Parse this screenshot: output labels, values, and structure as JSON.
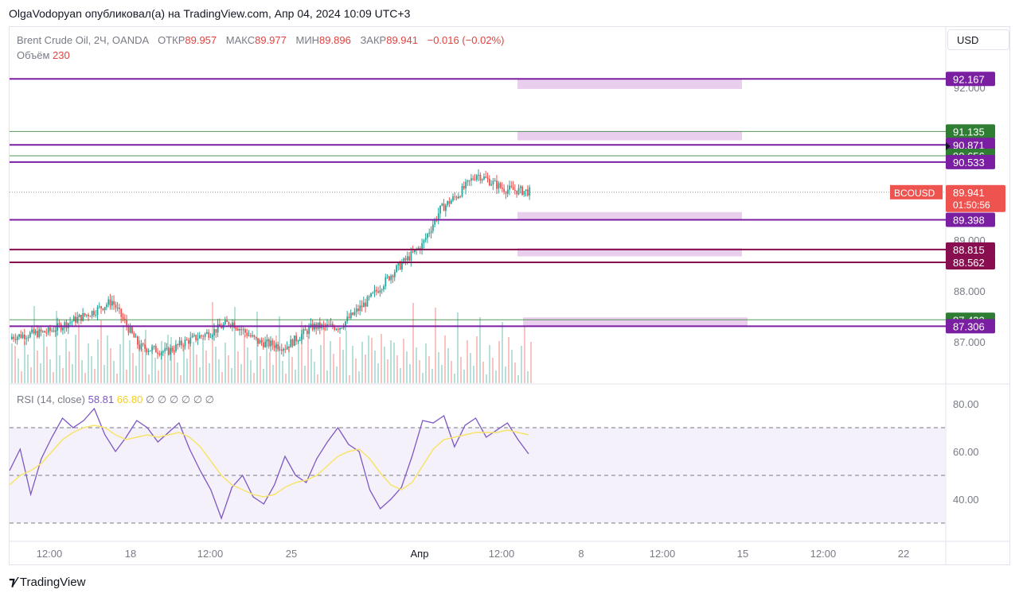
{
  "header": {
    "publisher_line": "OlgaVodopyan опубликовал(а) на TradingView.com, Апр 04, 2024 10:09 UTC+3"
  },
  "legend": {
    "symbol": "Brent Crude Oil, 2Ч, OANDA",
    "open_label": "ОТКР",
    "open": "89.957",
    "high_label": "МАКС",
    "high": "89.977",
    "low_label": "МИН",
    "low": "89.896",
    "close_label": "ЗАКР",
    "close": "89.941",
    "change": "−0.016 (−0.02%)",
    "volume_label": "Объём",
    "volume": "230"
  },
  "currency": "USD",
  "rsi_legend": {
    "label": "RSI (14, close)",
    "rsi_value": "58.81",
    "ma_value": "66.80",
    "empty_marks": "∅ ∅ ∅ ∅ ∅ ∅"
  },
  "footer": {
    "brand": "TradingView"
  },
  "colors": {
    "up": "#26a69a",
    "down": "#ef5350",
    "purple": "#7b1fa2",
    "green_line": "#2e7d32",
    "maroon": "#880e4f",
    "rsi_line": "#7e57c2",
    "rsi_ma": "#f7e46a",
    "zone": "#d9a6e0"
  },
  "chart_data": [
    {
      "type": "candlestick",
      "title": "Brent Crude Oil, 2Ч, OANDA",
      "symbol_tag": "BCOUSD",
      "last_price": "89.941",
      "countdown": "01:50:56",
      "ylim": [
        86.8,
        92.6
      ],
      "y_ticks": [
        "92.000",
        "91.000",
        "90.000",
        "89.000",
        "88.000",
        "87.000"
      ],
      "x_ticks": [
        "12:00",
        "18",
        "12:00",
        "25",
        "Апр",
        "12:00",
        "8",
        "12:00",
        "15",
        "12:00",
        "22"
      ],
      "price_levels": [
        {
          "value": "92.167",
          "color": "purple"
        },
        {
          "value": "91.135",
          "color": "green"
        },
        {
          "value": "90.871",
          "color": "purple"
        },
        {
          "value": "90.656",
          "color": "green"
        },
        {
          "value": "90.533",
          "color": "purple"
        },
        {
          "value": "89.398",
          "color": "purple"
        },
        {
          "value": "88.815",
          "color": "maroon"
        },
        {
          "value": "88.562",
          "color": "maroon"
        },
        {
          "value": "87.433",
          "color": "green"
        },
        {
          "value": "87.306",
          "color": "purple"
        }
      ],
      "zones": [
        {
          "from": 91.97,
          "to": 92.17
        },
        {
          "from": 90.96,
          "to": 91.14
        },
        {
          "from": 89.4,
          "to": 89.55
        },
        {
          "from": 88.68,
          "to": 88.84
        },
        {
          "from": 87.3,
          "to": 87.48
        }
      ],
      "candles": [
        {
          "x": 38.4,
          "o": 87.05,
          "h": 87.18,
          "l": 86.92,
          "c": 87.08
        },
        {
          "x": 38.5,
          "o": 87.08,
          "h": 87.22,
          "l": 86.95,
          "c": 87.15
        },
        {
          "x": 38.6,
          "o": 87.15,
          "h": 87.3,
          "l": 87.0,
          "c": 87.2
        },
        {
          "x": 38.7,
          "o": 87.2,
          "h": 87.28,
          "l": 86.98,
          "c": 87.02
        },
        {
          "x": 38.8,
          "o": 87.02,
          "h": 87.2,
          "l": 86.96,
          "c": 87.12
        },
        {
          "x": 38.9,
          "o": 87.12,
          "h": 87.25,
          "l": 87.05,
          "c": 87.18
        },
        {
          "x": 39.0,
          "o": 87.18,
          "h": 87.32,
          "l": 87.1,
          "c": 87.25
        },
        {
          "x": 39.1,
          "o": 87.25,
          "h": 87.36,
          "l": 87.15,
          "c": 87.2
        },
        {
          "x": 39.2,
          "o": 87.2,
          "h": 87.3,
          "l": 87.02,
          "c": 87.08
        },
        {
          "x": 39.3,
          "o": 87.08,
          "h": 87.2,
          "l": 86.98,
          "c": 87.14
        }
      ]
    },
    {
      "type": "line",
      "title": "RSI (14, close)",
      "ylim": [
        25,
        85
      ],
      "y_ticks": [
        "80.00",
        "60.00",
        "40.00"
      ],
      "bands": {
        "upper": 70,
        "middle": 50,
        "lower": 30
      },
      "series": [
        {
          "values": [
            52,
            61,
            42,
            57,
            66,
            74,
            70,
            73,
            78,
            67,
            60,
            66,
            73,
            70,
            64,
            68,
            72,
            61,
            52,
            44,
            32,
            45,
            50,
            41,
            38,
            46,
            58,
            50,
            47,
            57,
            64,
            70,
            63,
            60,
            44,
            36,
            40,
            45,
            58,
            73,
            72,
            75,
            62,
            71,
            74,
            66,
            69,
            72,
            65,
            59
          ]
        },
        {
          "values": [
            46,
            50,
            52,
            55,
            60,
            65,
            68,
            70,
            71,
            70,
            67,
            65,
            66,
            67,
            66,
            67,
            68,
            66,
            62,
            56,
            50,
            46,
            44,
            42,
            41,
            42,
            45,
            47,
            48,
            50,
            54,
            58,
            60,
            61,
            57,
            51,
            46,
            44,
            47,
            54,
            61,
            65,
            66,
            67,
            68,
            68,
            68,
            69,
            68,
            67
          ]
        }
      ]
    }
  ]
}
